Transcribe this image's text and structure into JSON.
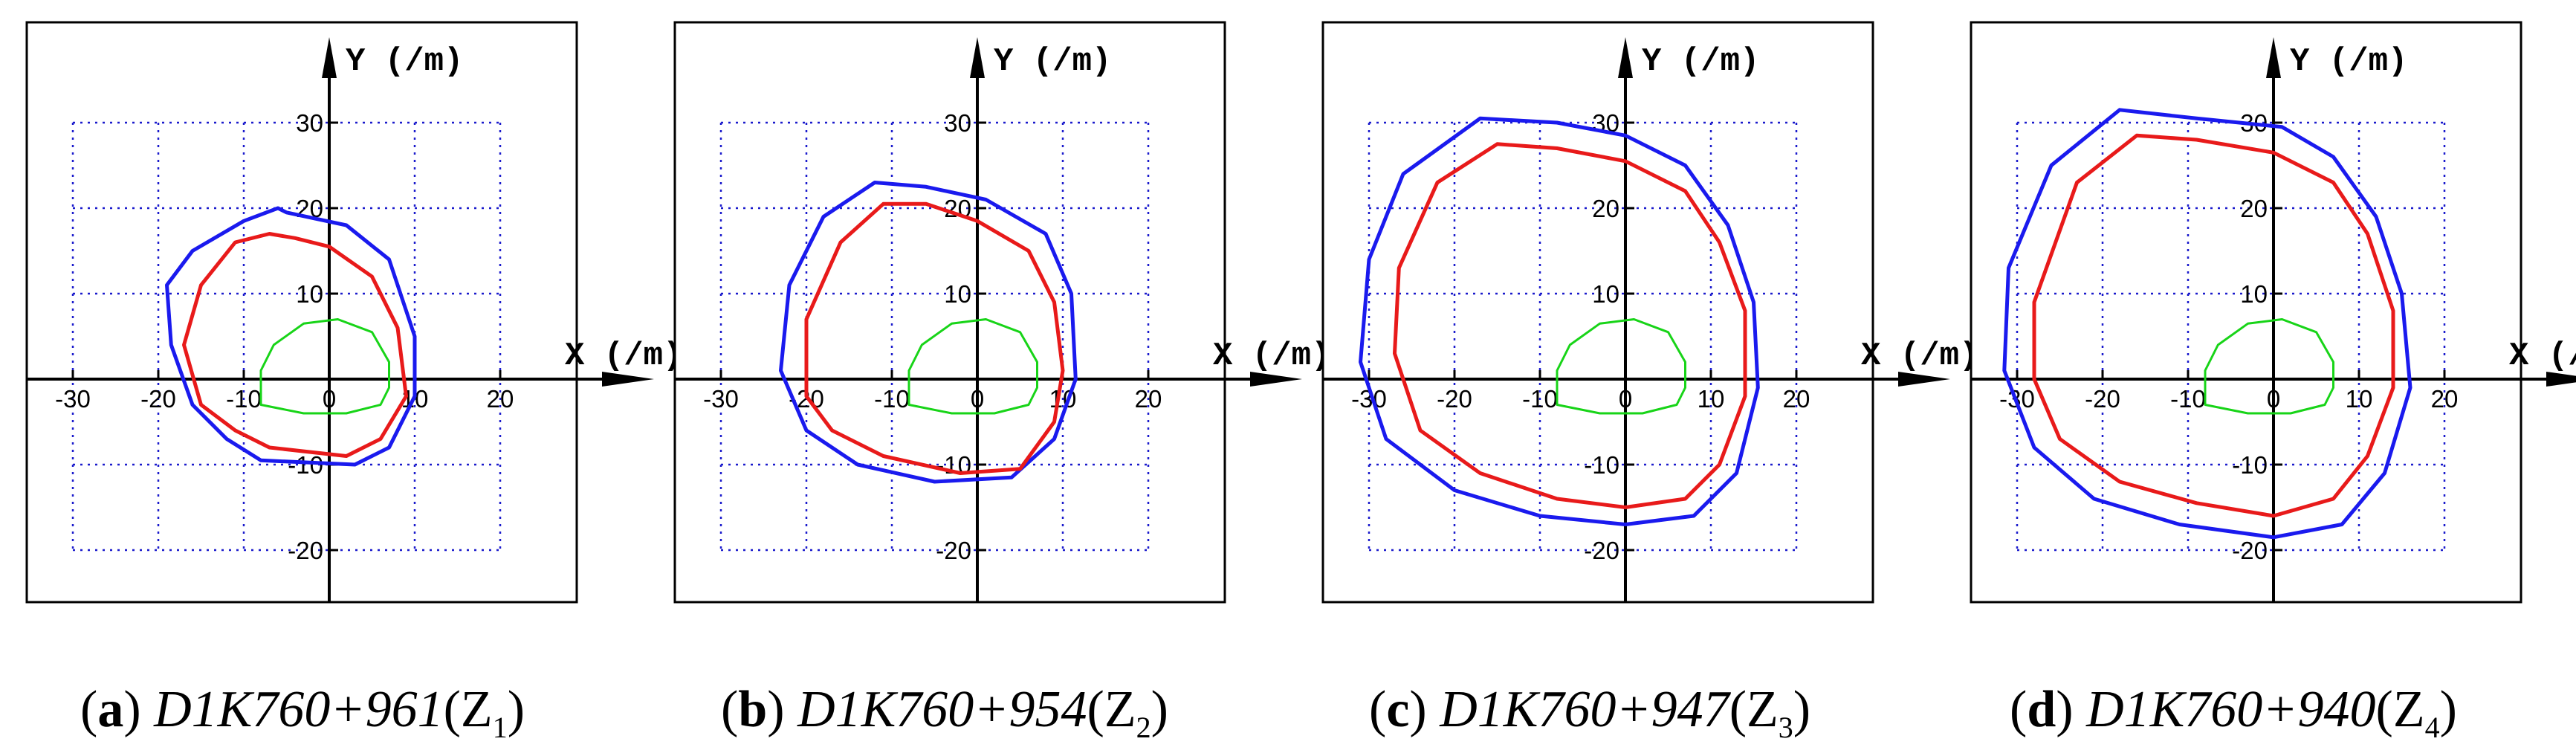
{
  "chart_data": [
    {
      "type": "line",
      "caption": {
        "letter": "a",
        "station": "D1K760+961",
        "zone": "Z",
        "zone_sub": "1"
      },
      "xlabel": "X (/m)",
      "ylabel": "Y (/m)",
      "xlim": [
        -37,
        38
      ],
      "ylim": [
        -27,
        40
      ],
      "xticks": [
        -30,
        -20,
        -10,
        0,
        10,
        20
      ],
      "yticks": [
        -20,
        -10,
        10,
        20,
        30
      ],
      "grid": true,
      "series": [
        {
          "color": "#1a1aee",
          "points": [
            [
              -6,
              20
            ],
            [
              -10,
              18.5
            ],
            [
              -16,
              15
            ],
            [
              -19,
              11
            ],
            [
              -18.5,
              4
            ],
            [
              -16,
              -3
            ],
            [
              -12,
              -7
            ],
            [
              -8,
              -9.5
            ],
            [
              3,
              -10
            ],
            [
              7,
              -8
            ],
            [
              10,
              -2
            ],
            [
              10,
              5
            ],
            [
              7,
              14
            ],
            [
              2,
              18
            ],
            [
              -5,
              19.5
            ]
          ]
        },
        {
          "color": "#e81a1a",
          "points": [
            [
              -7,
              17
            ],
            [
              -11,
              16
            ],
            [
              -15,
              11
            ],
            [
              -17,
              4
            ],
            [
              -15,
              -3
            ],
            [
              -11,
              -6
            ],
            [
              -7,
              -8
            ],
            [
              2,
              -9
            ],
            [
              6,
              -7
            ],
            [
              9,
              -2
            ],
            [
              8,
              6
            ],
            [
              5,
              12
            ],
            [
              0,
              15.5
            ],
            [
              -4,
              16.5
            ]
          ]
        },
        {
          "color": "#18d418",
          "points": [
            [
              -8,
              -3
            ],
            [
              -8,
              1
            ],
            [
              -6.5,
              4
            ],
            [
              -3,
              6.5
            ],
            [
              1,
              7
            ],
            [
              5,
              5.5
            ],
            [
              7,
              2
            ],
            [
              7,
              -1
            ],
            [
              6,
              -3
            ],
            [
              2,
              -4
            ],
            [
              -3,
              -4
            ]
          ]
        }
      ]
    },
    {
      "type": "line",
      "caption": {
        "letter": "b",
        "station": "D1K760+954",
        "zone": "Z",
        "zone_sub": "2"
      },
      "xlabel": "X (/m)",
      "ylabel": "Y (/m)",
      "xlim": [
        -37,
        38
      ],
      "ylim": [
        -27,
        40
      ],
      "xticks": [
        -30,
        -20,
        -10,
        0,
        10,
        20
      ],
      "yticks": [
        -20,
        -10,
        10,
        20,
        30
      ],
      "grid": true,
      "series": [
        {
          "color": "#1a1aee",
          "points": [
            [
              -12,
              23
            ],
            [
              -18,
              19
            ],
            [
              -22,
              11
            ],
            [
              -23,
              1
            ],
            [
              -20,
              -6
            ],
            [
              -14,
              -10
            ],
            [
              -5,
              -12
            ],
            [
              4,
              -11.5
            ],
            [
              9,
              -7
            ],
            [
              11.5,
              0
            ],
            [
              11,
              10
            ],
            [
              8,
              17
            ],
            [
              1,
              21
            ],
            [
              -6,
              22.5
            ]
          ]
        },
        {
          "color": "#e81a1a",
          "points": [
            [
              -11,
              20.5
            ],
            [
              -16,
              16
            ],
            [
              -20,
              7
            ],
            [
              -20,
              -2
            ],
            [
              -17,
              -6
            ],
            [
              -11,
              -9
            ],
            [
              -2,
              -11
            ],
            [
              5,
              -10.5
            ],
            [
              9,
              -5
            ],
            [
              10,
              1
            ],
            [
              9,
              9
            ],
            [
              6,
              15
            ],
            [
              0,
              18.5
            ],
            [
              -6,
              20.5
            ]
          ]
        },
        {
          "color": "#18d418",
          "points": [
            [
              -8,
              -3
            ],
            [
              -8,
              1
            ],
            [
              -6.5,
              4
            ],
            [
              -3,
              6.5
            ],
            [
              1,
              7
            ],
            [
              5,
              5.5
            ],
            [
              7,
              2
            ],
            [
              7,
              -1
            ],
            [
              6,
              -3
            ],
            [
              2,
              -4
            ],
            [
              -3,
              -4
            ]
          ]
        }
      ]
    },
    {
      "type": "line",
      "caption": {
        "letter": "c",
        "station": "D1K760+947",
        "zone": "Z",
        "zone_sub": "3"
      },
      "xlabel": "X (/m)",
      "ylabel": "Y (/m)",
      "xlim": [
        -37,
        38
      ],
      "ylim": [
        -27,
        40
      ],
      "xticks": [
        -30,
        -20,
        -10,
        0,
        10,
        20
      ],
      "yticks": [
        -20,
        -10,
        10,
        20,
        30
      ],
      "grid": true,
      "series": [
        {
          "color": "#1a1aee",
          "points": [
            [
              -17,
              30.5
            ],
            [
              -26,
              24
            ],
            [
              -30,
              14
            ],
            [
              -31,
              2
            ],
            [
              -28,
              -7
            ],
            [
              -20,
              -13
            ],
            [
              -10,
              -16
            ],
            [
              0,
              -17
            ],
            [
              8,
              -16
            ],
            [
              13,
              -11
            ],
            [
              15.5,
              -1
            ],
            [
              15,
              9
            ],
            [
              12,
              18
            ],
            [
              7,
              25
            ],
            [
              0,
              28.5
            ],
            [
              -8,
              30
            ]
          ]
        },
        {
          "color": "#e81a1a",
          "points": [
            [
              -15,
              27.5
            ],
            [
              -22,
              23
            ],
            [
              -26.5,
              13
            ],
            [
              -27,
              3
            ],
            [
              -24,
              -6
            ],
            [
              -17,
              -11
            ],
            [
              -8,
              -14
            ],
            [
              0,
              -15
            ],
            [
              7,
              -14
            ],
            [
              11,
              -10
            ],
            [
              14,
              -2
            ],
            [
              14,
              8
            ],
            [
              11,
              16
            ],
            [
              7,
              22
            ],
            [
              0,
              25.5
            ],
            [
              -8,
              27
            ]
          ]
        },
        {
          "color": "#18d418",
          "points": [
            [
              -8,
              -3
            ],
            [
              -8,
              1
            ],
            [
              -6.5,
              4
            ],
            [
              -3,
              6.5
            ],
            [
              1,
              7
            ],
            [
              5,
              5.5
            ],
            [
              7,
              2
            ],
            [
              7,
              -1
            ],
            [
              6,
              -3
            ],
            [
              2,
              -4
            ],
            [
              -3,
              -4
            ]
          ]
        }
      ]
    },
    {
      "type": "line",
      "caption": {
        "letter": "d",
        "station": "D1K760+940",
        "zone": "Z",
        "zone_sub": "4"
      },
      "xlabel": "X (/m)",
      "ylabel": "Y (/m)",
      "xlim": [
        -37,
        38
      ],
      "ylim": [
        -27,
        40
      ],
      "xticks": [
        -30,
        -20,
        -10,
        0,
        10,
        20
      ],
      "yticks": [
        -20,
        -10,
        10,
        20,
        30
      ],
      "grid": true,
      "series": [
        {
          "color": "#1a1aee",
          "points": [
            [
              -18,
              31.5
            ],
            [
              -26,
              25
            ],
            [
              -31,
              13
            ],
            [
              -31.5,
              1
            ],
            [
              -28,
              -8
            ],
            [
              -21,
              -14
            ],
            [
              -11,
              -17
            ],
            [
              0,
              -18.5
            ],
            [
              8,
              -17
            ],
            [
              13,
              -11
            ],
            [
              16,
              -1
            ],
            [
              15,
              10
            ],
            [
              12,
              19
            ],
            [
              7,
              26
            ],
            [
              1,
              29.5
            ],
            [
              -9,
              30.5
            ]
          ]
        },
        {
          "color": "#e81a1a",
          "points": [
            [
              -16,
              28.5
            ],
            [
              -23,
              23
            ],
            [
              -28,
              9
            ],
            [
              -28,
              0
            ],
            [
              -25,
              -7
            ],
            [
              -18,
              -12
            ],
            [
              -9,
              -14.5
            ],
            [
              0,
              -16
            ],
            [
              7,
              -14
            ],
            [
              11,
              -9
            ],
            [
              14,
              -1
            ],
            [
              14,
              8
            ],
            [
              11,
              17
            ],
            [
              7,
              23
            ],
            [
              0,
              26.5
            ],
            [
              -9,
              28
            ]
          ]
        },
        {
          "color": "#18d418",
          "points": [
            [
              -8,
              -3
            ],
            [
              -8,
              1
            ],
            [
              -6.5,
              4
            ],
            [
              -3,
              6.5
            ],
            [
              1,
              7
            ],
            [
              5,
              5.5
            ],
            [
              7,
              2
            ],
            [
              7,
              -1
            ],
            [
              6,
              -3
            ],
            [
              2,
              -4
            ],
            [
              -3,
              -4
            ]
          ]
        }
      ]
    }
  ]
}
